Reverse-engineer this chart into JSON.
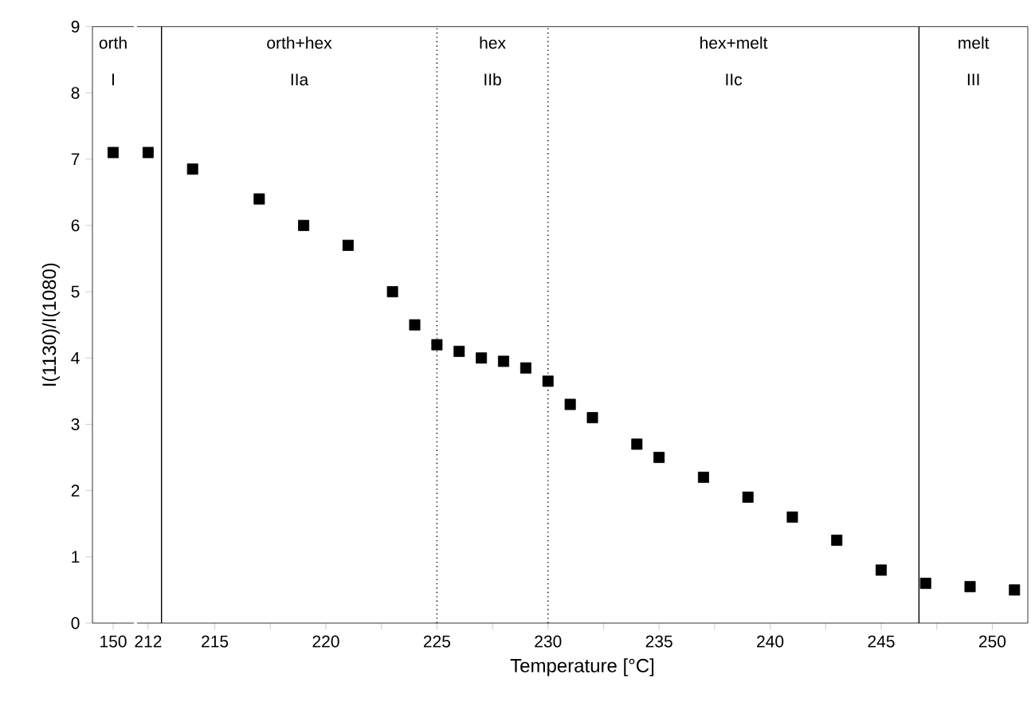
{
  "chart_data": [
    {
      "type": "scatter",
      "categories": [
        "150"
      ],
      "values": [
        7.1
      ],
      "color": "#000000",
      "marker": "square",
      "ylabel": "I(1130)/I(1080)",
      "ylim": [
        0,
        9
      ],
      "yticks": [
        0,
        1,
        2,
        3,
        4,
        5,
        6,
        7,
        8,
        9
      ],
      "annotations": [
        "orth I"
      ]
    },
    {
      "type": "scatter",
      "x": [
        212,
        214,
        217,
        219,
        221,
        223,
        224,
        225,
        226,
        227,
        228,
        229,
        230,
        231,
        232,
        234,
        235,
        237,
        239,
        241,
        243,
        245,
        247,
        249,
        251
      ],
      "values": [
        7.1,
        6.85,
        6.4,
        6.0,
        5.7,
        5.0,
        4.5,
        4.2,
        4.1,
        4.0,
        3.95,
        3.85,
        3.65,
        3.3,
        3.1,
        2.7,
        2.5,
        2.2,
        1.9,
        1.6,
        1.25,
        0.8,
        0.6,
        0.55,
        0.5
      ],
      "color": "#000000",
      "marker": "square",
      "xlabel": "Temperature [°C]",
      "xlim": [
        211.5,
        251.6
      ],
      "ylim": [
        0,
        9
      ],
      "tick_labels": "x",
      "xticks": [
        212,
        215,
        {
          "value": 217.5,
          "label": null
        },
        220,
        {
          "value": 222.5,
          "label": null
        },
        225,
        {
          "value": 227.5,
          "label": null
        },
        230,
        {
          "value": 232.5,
          "label": null
        },
        235,
        {
          "value": 237.5,
          "label": null
        },
        240,
        {
          "value": 242.5,
          "label": null
        },
        245,
        {
          "value": 247.5,
          "label": null
        },
        250
      ],
      "ref_lines": [
        {
          "axis": "x",
          "value": 212.6,
          "line_style": "solid"
        },
        {
          "axis": "x",
          "value": 225,
          "line_style": "dotted"
        },
        {
          "axis": "x",
          "value": 230,
          "line_style": "dotted"
        },
        {
          "axis": "x",
          "value": 246.7,
          "line_style": "solid"
        }
      ],
      "annotations": [
        "orth+hex IIa",
        "hex IIb",
        "hex+melt IIc",
        "melt III"
      ]
    }
  ]
}
